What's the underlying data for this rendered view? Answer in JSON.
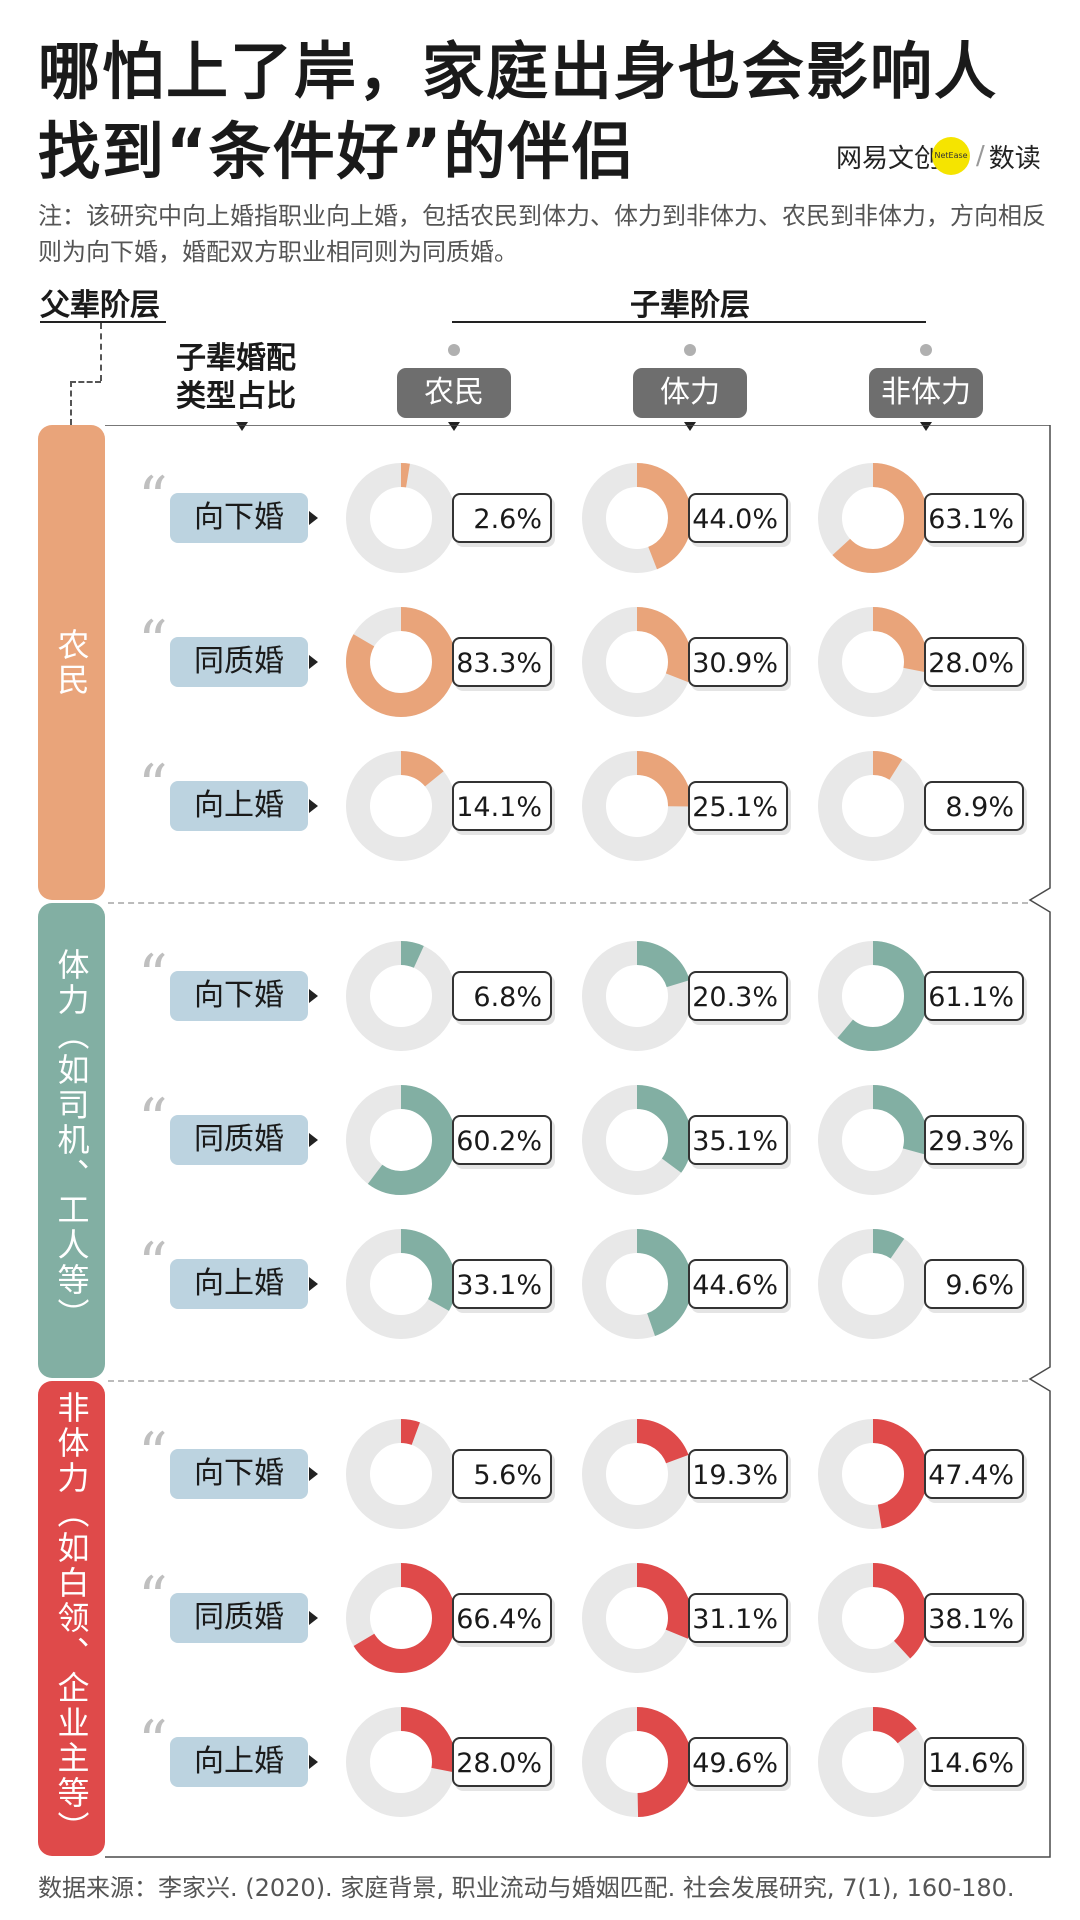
{
  "title_lines": [
    "哪怕上了岸，家庭出身也会影响人",
    "找到“条件好”的伴侣"
  ],
  "logo": {
    "brand": "网易文创",
    "dot_text": "NetEase",
    "slash": "/",
    "product": "数读",
    "dot_color": "#f5e400"
  },
  "note": "注：该研究中向上婚指职业向上婚，包括农民到体力、体力到非体力、农民到非体力，方向相反则为向下婚，婚配双方职业相同则为同质婚。",
  "header": {
    "parent": "父辈阶层",
    "child": "子辈阶层",
    "type": "子辈婚配类型占比"
  },
  "source": "数据来源：李家兴. (2020). 家庭背景, 职业流动与婚姻匹配. 社会发展研究, 7(1), 160-180.",
  "chart_data": {
    "type": "donut-grid",
    "title": "哪怕上了岸，家庭出身也会影响人找到“条件好”的伴侣",
    "row_axis_label": "父辈阶层",
    "column_axis_label": "子辈阶层",
    "columns": [
      "农民",
      "体力",
      "非体力"
    ],
    "marriage_types": [
      "向下婚",
      "同质婚",
      "向上婚"
    ],
    "track_color": "#e8e8e8",
    "groups": [
      {
        "label": "农民",
        "color": "#e9a47a",
        "rows": [
          {
            "type": "向下婚",
            "values": [
              2.6,
              44.0,
              63.1
            ],
            "labels": [
              "2.6%",
              "44.0%",
              "63.1%"
            ]
          },
          {
            "type": "同质婚",
            "values": [
              83.3,
              30.9,
              28.0
            ],
            "labels": [
              "83.3%",
              "30.9%",
              "28.0%"
            ]
          },
          {
            "type": "向上婚",
            "values": [
              14.1,
              25.1,
              8.9
            ],
            "labels": [
              "14.1%",
              "25.1%",
              "8.9%"
            ]
          }
        ]
      },
      {
        "label": "体力（如司机、工人等）",
        "color": "#82afa3",
        "rows": [
          {
            "type": "向下婚",
            "values": [
              6.8,
              20.3,
              61.1
            ],
            "labels": [
              "6.8%",
              "20.3%",
              "61.1%"
            ]
          },
          {
            "type": "同质婚",
            "values": [
              60.2,
              35.1,
              29.3
            ],
            "labels": [
              "60.2%",
              "35.1%",
              "29.3%"
            ]
          },
          {
            "type": "向上婚",
            "values": [
              33.1,
              44.6,
              9.6
            ],
            "labels": [
              "33.1%",
              "44.6%",
              "9.6%"
            ]
          }
        ]
      },
      {
        "label": "非体力（如白领、企业主等）",
        "color": "#df4a4a",
        "rows": [
          {
            "type": "向下婚",
            "values": [
              5.6,
              19.3,
              47.4
            ],
            "labels": [
              "5.6%",
              "19.3%",
              "47.4%"
            ]
          },
          {
            "type": "同质婚",
            "values": [
              66.4,
              31.1,
              38.1
            ],
            "labels": [
              "66.4%",
              "31.1%",
              "38.1%"
            ]
          },
          {
            "type": "向上婚",
            "values": [
              28.0,
              49.6,
              14.6
            ],
            "labels": [
              "28.0%",
              "49.6%",
              "14.6%"
            ]
          }
        ]
      }
    ]
  }
}
